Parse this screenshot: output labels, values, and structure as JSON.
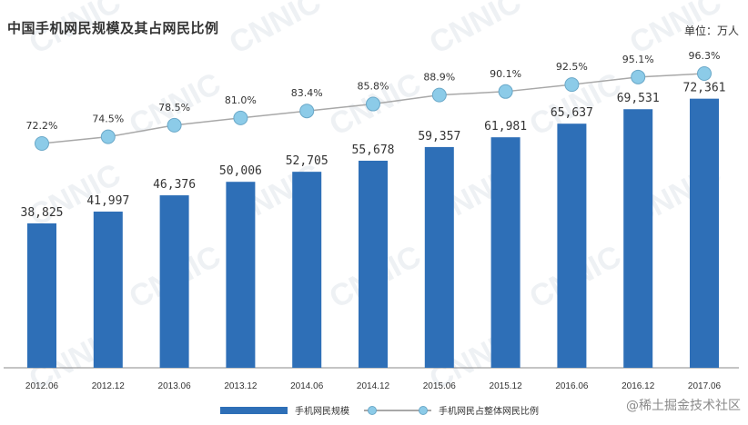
{
  "title": "中国手机网民规模及其占网民比例",
  "unit_label": "单位：万人",
  "watermark_text": "@稀土掘金技术社区",
  "background_mark_text": "CNNIC",
  "colors": {
    "bar": "#2e6fb7",
    "line": "#a8a8a8",
    "marker": "#8ccbe8",
    "marker_border": "#6aa8c8"
  },
  "legend": {
    "bar_label": "手机网民规模",
    "line_label": "手机网民占整体网民比例"
  },
  "chart_data": {
    "type": "bar",
    "categories": [
      "2012.06",
      "2012.12",
      "2013.06",
      "2013.12",
      "2014.06",
      "2014.12",
      "2015.06",
      "2015.12",
      "2016.06",
      "2016.12",
      "2017.06"
    ],
    "series": [
      {
        "name": "手机网民规模",
        "type": "bar",
        "values": [
          38825,
          41997,
          46376,
          50006,
          52705,
          55678,
          59357,
          61981,
          65637,
          69531,
          72361
        ],
        "labels": [
          "38,825",
          "41,997",
          "46,376",
          "50,006",
          "52,705",
          "55,678",
          "59,357",
          "61,981",
          "65,637",
          "69,531",
          "72,361"
        ]
      },
      {
        "name": "手机网民占整体网民比例",
        "type": "line",
        "values": [
          72.2,
          74.5,
          78.5,
          81.0,
          83.4,
          85.8,
          88.9,
          90.1,
          92.5,
          95.1,
          96.3
        ],
        "labels": [
          "72.2%",
          "74.5%",
          "78.5%",
          "81.0%",
          "83.4%",
          "85.8%",
          "88.9%",
          "90.1%",
          "92.5%",
          "95.1%",
          "96.3%"
        ]
      }
    ],
    "legend_position": "bottom",
    "grid": false
  }
}
